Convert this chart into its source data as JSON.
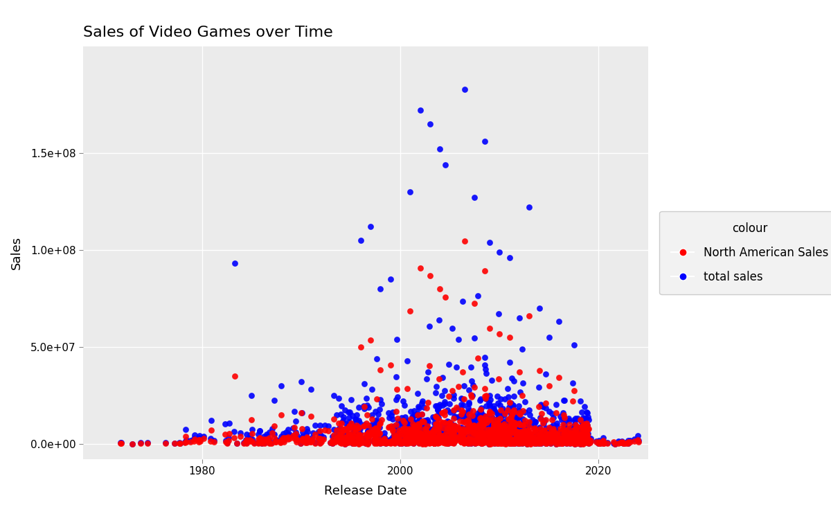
{
  "title": "Sales of Video Games over Time",
  "xlabel": "Release Date",
  "ylabel": "Sales",
  "legend_title": "colour",
  "legend_labels": [
    "North American Sales",
    "total sales"
  ],
  "na_color": "#FF0000",
  "total_color": "#0000FF",
  "bg_color": "#EBEBEB",
  "fig_bg": "#FFFFFF",
  "grid_color": "#FFFFFF",
  "xmin": 1968,
  "xmax": 2025,
  "ymin": -8000000,
  "ymax": 205000000.0,
  "yticks": [
    0,
    50000000,
    100000000,
    150000000
  ],
  "xticks": [
    1980,
    2000,
    2020
  ],
  "marker_size": 40,
  "alpha": 0.9,
  "title_fontsize": 16,
  "axis_fontsize": 13,
  "tick_fontsize": 11,
  "legend_fontsize": 12
}
